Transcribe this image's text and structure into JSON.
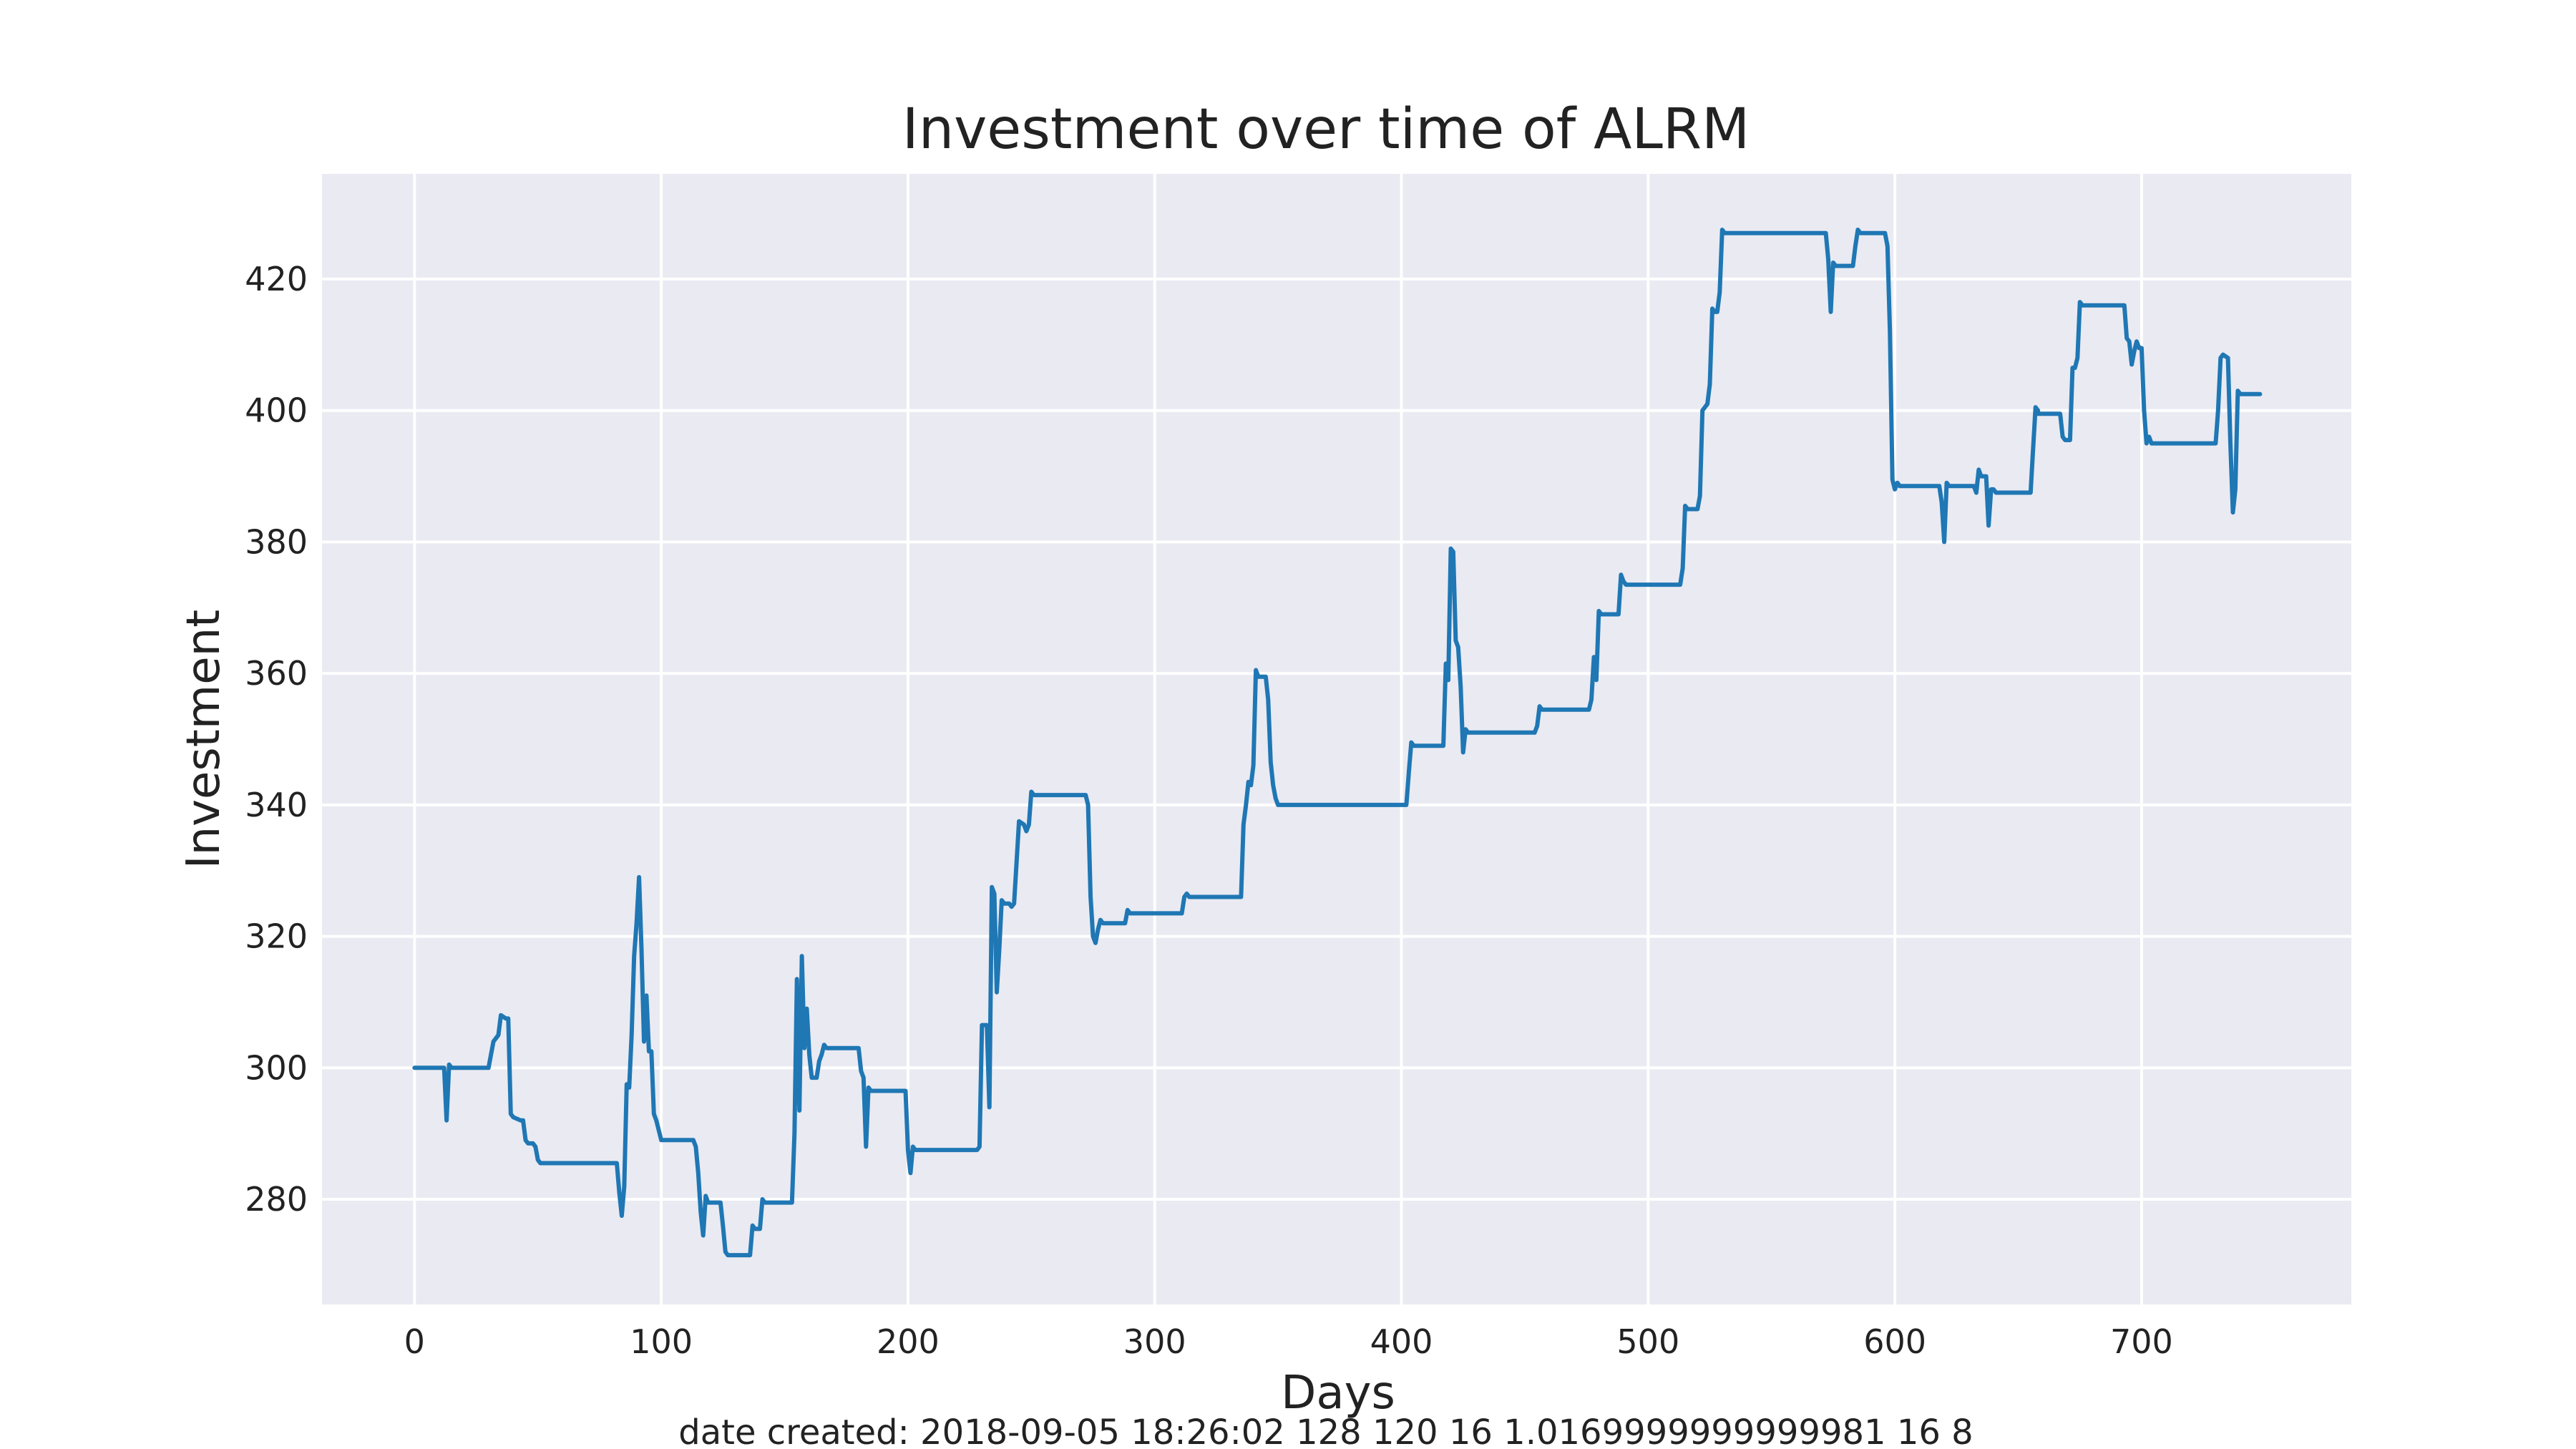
{
  "chart_data": {
    "type": "line",
    "title": "Investment over time of ALRM",
    "xlabel": "Days",
    "ylabel": "Investment",
    "xlim": [
      -37.5,
      785
    ],
    "ylim": [
      264,
      436
    ],
    "x_ticks": [
      0,
      100,
      200,
      300,
      400,
      500,
      600,
      700
    ],
    "y_ticks": [
      280,
      300,
      320,
      340,
      360,
      380,
      400,
      420
    ],
    "grid": true,
    "background": "#eaeaf2",
    "line_color": "#1f77b4",
    "series": [
      {
        "points": [
          [
            0,
            300
          ],
          [
            12,
            300
          ],
          [
            13,
            292
          ],
          [
            14,
            300.5
          ],
          [
            15,
            300
          ],
          [
            30,
            300
          ],
          [
            32,
            304
          ],
          [
            34,
            305
          ],
          [
            35,
            308
          ],
          [
            37,
            307.5
          ],
          [
            38,
            307.5
          ],
          [
            39,
            293
          ],
          [
            40,
            292.5
          ],
          [
            43,
            292
          ],
          [
            44,
            292
          ],
          [
            45,
            289
          ],
          [
            46,
            288.5
          ],
          [
            48,
            288.5
          ],
          [
            49,
            288
          ],
          [
            50,
            286
          ],
          [
            51,
            285.5
          ],
          [
            82,
            285.5
          ],
          [
            83,
            281
          ],
          [
            84,
            277.5
          ],
          [
            85,
            282
          ],
          [
            86,
            297.5
          ],
          [
            87,
            297
          ],
          [
            88,
            305
          ],
          [
            89,
            317
          ],
          [
            90,
            322
          ],
          [
            91,
            329
          ],
          [
            92,
            318
          ],
          [
            93,
            304
          ],
          [
            94,
            311
          ],
          [
            95,
            302.5
          ],
          [
            96,
            302.5
          ],
          [
            97,
            293
          ],
          [
            98,
            292
          ],
          [
            100,
            289
          ],
          [
            113,
            289
          ],
          [
            114,
            288
          ],
          [
            115,
            284
          ],
          [
            116,
            278
          ],
          [
            117,
            274.5
          ],
          [
            118,
            280.5
          ],
          [
            119,
            279.5
          ],
          [
            121,
            279.5
          ],
          [
            124,
            279.5
          ],
          [
            125,
            276
          ],
          [
            126,
            272
          ],
          [
            127,
            271.5
          ],
          [
            136,
            271.5
          ],
          [
            137,
            276
          ],
          [
            138,
            275.5
          ],
          [
            140,
            275.5
          ],
          [
            141,
            280
          ],
          [
            142,
            279.5
          ],
          [
            153,
            279.5
          ],
          [
            154,
            290
          ],
          [
            155,
            313.5
          ],
          [
            156,
            293.5
          ],
          [
            157,
            317
          ],
          [
            158,
            303
          ],
          [
            159,
            309
          ],
          [
            160,
            302
          ],
          [
            161,
            298.5
          ],
          [
            163,
            298.5
          ],
          [
            164,
            301
          ],
          [
            165,
            302
          ],
          [
            166,
            303.5
          ],
          [
            167,
            303
          ],
          [
            180,
            303
          ],
          [
            181,
            299.5
          ],
          [
            182,
            298.5
          ],
          [
            183,
            288
          ],
          [
            184,
            297
          ],
          [
            185,
            296.5
          ],
          [
            199,
            296.5
          ],
          [
            200,
            287.5
          ],
          [
            201,
            284
          ],
          [
            202,
            288
          ],
          [
            203,
            287.5
          ],
          [
            228,
            287.5
          ],
          [
            229,
            288
          ],
          [
            230,
            306.5
          ],
          [
            232,
            306.5
          ],
          [
            233,
            294
          ],
          [
            234,
            327.5
          ],
          [
            235,
            326.5
          ],
          [
            236,
            311.5
          ],
          [
            237,
            318
          ],
          [
            238,
            325.5
          ],
          [
            239,
            325
          ],
          [
            241,
            325
          ],
          [
            242,
            324.5
          ],
          [
            243,
            325
          ],
          [
            245,
            337.5
          ],
          [
            247,
            337
          ],
          [
            248,
            336
          ],
          [
            249,
            337
          ],
          [
            250,
            342
          ],
          [
            251,
            341.5
          ],
          [
            272,
            341.5
          ],
          [
            273,
            340
          ],
          [
            274,
            326
          ],
          [
            275,
            320
          ],
          [
            276,
            319
          ],
          [
            277,
            321
          ],
          [
            278,
            322.5
          ],
          [
            279,
            322
          ],
          [
            288,
            322
          ],
          [
            289,
            324
          ],
          [
            290,
            323.5
          ],
          [
            311,
            323.5
          ],
          [
            312,
            326
          ],
          [
            313,
            326.5
          ],
          [
            314,
            326
          ],
          [
            335,
            326
          ],
          [
            336,
            337
          ],
          [
            337,
            340
          ],
          [
            338,
            343.5
          ],
          [
            339,
            343
          ],
          [
            340,
            346
          ],
          [
            341,
            360.5
          ],
          [
            342,
            359.5
          ],
          [
            345,
            359.5
          ],
          [
            346,
            356
          ],
          [
            347,
            346.5
          ],
          [
            348,
            343
          ],
          [
            349,
            341
          ],
          [
            350,
            340
          ],
          [
            402,
            340
          ],
          [
            403,
            345
          ],
          [
            404,
            349.5
          ],
          [
            405,
            349
          ],
          [
            417,
            349
          ],
          [
            418,
            361.5
          ],
          [
            419,
            359
          ],
          [
            420,
            379
          ],
          [
            421,
            378.5
          ],
          [
            422,
            365
          ],
          [
            423,
            364
          ],
          [
            424,
            358
          ],
          [
            425,
            348
          ],
          [
            426,
            351.5
          ],
          [
            427,
            351
          ],
          [
            454,
            351
          ],
          [
            455,
            352
          ],
          [
            456,
            355
          ],
          [
            457,
            354.5
          ],
          [
            476,
            354.5
          ],
          [
            477,
            356
          ],
          [
            478,
            362.5
          ],
          [
            479,
            359
          ],
          [
            480,
            369.5
          ],
          [
            481,
            369
          ],
          [
            488,
            369
          ],
          [
            489,
            375
          ],
          [
            490,
            374
          ],
          [
            491,
            373.5
          ],
          [
            513,
            373.5
          ],
          [
            514,
            376
          ],
          [
            515,
            385.5
          ],
          [
            516,
            385
          ],
          [
            520,
            385
          ],
          [
            521,
            387
          ],
          [
            522,
            400
          ],
          [
            523,
            400.5
          ],
          [
            524,
            401
          ],
          [
            525,
            404
          ],
          [
            526,
            415.5
          ],
          [
            527,
            415
          ],
          [
            528,
            415
          ],
          [
            529,
            418
          ],
          [
            530,
            427.5
          ],
          [
            531,
            427
          ],
          [
            572,
            427
          ],
          [
            573,
            423
          ],
          [
            574,
            415
          ],
          [
            575,
            422.5
          ],
          [
            576,
            422
          ],
          [
            583,
            422
          ],
          [
            584,
            425
          ],
          [
            585,
            427.5
          ],
          [
            586,
            427
          ],
          [
            596,
            427
          ],
          [
            597,
            425
          ],
          [
            598,
            412
          ],
          [
            599,
            389.5
          ],
          [
            600,
            388
          ],
          [
            601,
            389
          ],
          [
            602,
            388.5
          ],
          [
            618,
            388.5
          ],
          [
            619,
            386
          ],
          [
            620,
            380
          ],
          [
            621,
            389
          ],
          [
            622,
            388.5
          ],
          [
            632,
            388.5
          ],
          [
            633,
            387.5
          ],
          [
            634,
            391
          ],
          [
            635,
            390
          ],
          [
            637,
            390
          ],
          [
            638,
            382.5
          ],
          [
            639,
            388
          ],
          [
            640,
            388
          ],
          [
            641,
            387.5
          ],
          [
            655,
            387.5
          ],
          [
            656,
            394
          ],
          [
            657,
            400.5
          ],
          [
            658,
            400
          ],
          [
            658,
            399.5
          ],
          [
            667,
            399.5
          ],
          [
            668,
            396
          ],
          [
            669,
            395.5
          ],
          [
            671,
            395.5
          ],
          [
            672,
            406.5
          ],
          [
            673,
            406.5
          ],
          [
            674,
            408
          ],
          [
            675,
            416.5
          ],
          [
            676,
            416
          ],
          [
            693,
            416
          ],
          [
            694,
            411
          ],
          [
            695,
            410.5
          ],
          [
            696,
            407
          ],
          [
            697,
            409
          ],
          [
            698,
            410.5
          ],
          [
            699,
            409.5
          ],
          [
            700,
            409.5
          ],
          [
            701,
            400
          ],
          [
            702,
            395
          ],
          [
            703,
            396
          ],
          [
            704,
            395
          ],
          [
            730,
            395
          ],
          [
            731,
            400
          ],
          [
            732,
            408
          ],
          [
            733,
            408.5
          ],
          [
            735,
            408
          ],
          [
            736,
            395
          ],
          [
            737,
            384.5
          ],
          [
            738,
            388
          ],
          [
            739,
            403
          ],
          [
            740,
            402.5
          ],
          [
            748,
            402.5
          ]
        ]
      }
    ]
  },
  "footer": {
    "text": "date created: 2018-09-05 18:26:02 128 120 16 1.0169999999999981 16 8"
  }
}
